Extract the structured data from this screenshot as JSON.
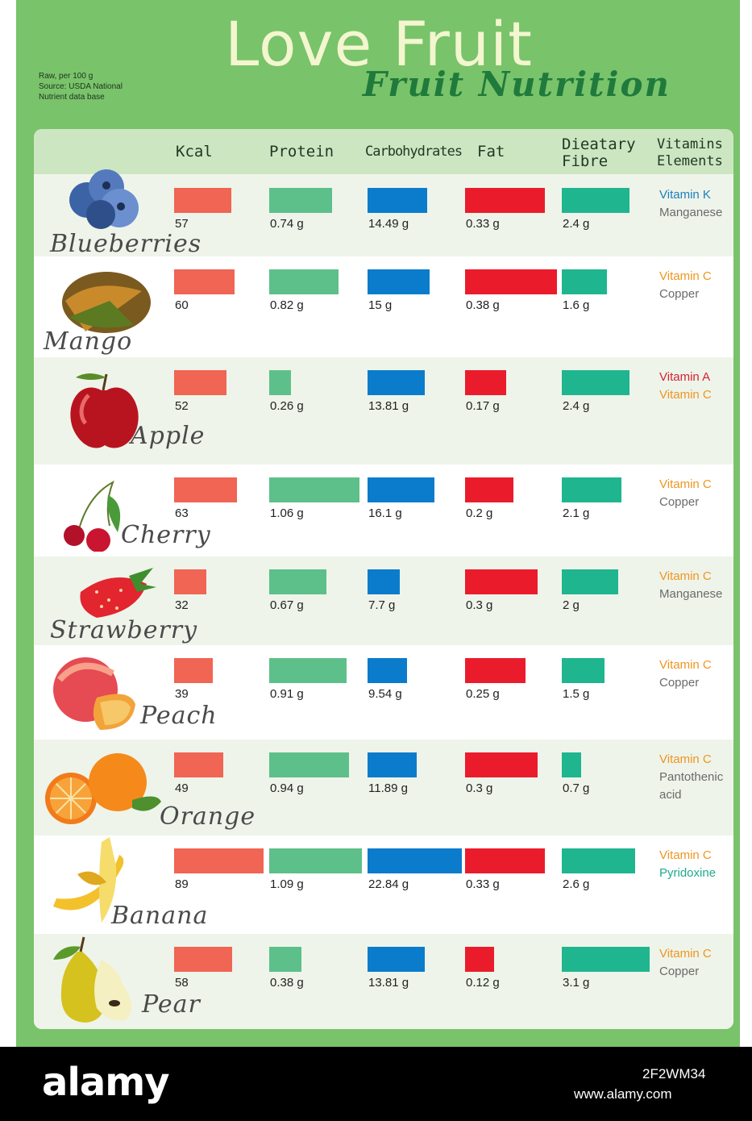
{
  "title": "Love Fruit",
  "subtitle": "Fruit Nutrition",
  "note": [
    "Raw, per 100 g",
    "Source: USDA National",
    "Nutrient data base"
  ],
  "footer": {
    "brand": "alamy",
    "image_id": "2F2WM34",
    "site": "www.alamy.com"
  },
  "colors": {
    "kcal": "#f06553",
    "protein": "#5dc08a",
    "carbs": "#0b7ccc",
    "fat": "#ea1c2c",
    "fibre": "#1fb58f"
  },
  "chart_data": {
    "type": "bar",
    "headers": [
      "Kcal",
      "Protein",
      "Carbohydrates",
      "Fat",
      "Dieatary Fibre",
      "Vitamins Elements"
    ],
    "rows": [
      {
        "fruit": "Blueberries",
        "icon": "blueberries-icon",
        "kcal": 57,
        "protein": 0.74,
        "carbs": 14.49,
        "fat": 0.33,
        "fibre": 2.4,
        "labels": {
          "kcal": "57",
          "protein": "0.74 g",
          "carbs": "14.49 g",
          "fat": "0.33 g",
          "fibre": "2.4 g"
        },
        "vitamins": [
          {
            "text": "Vitamin K",
            "color": "#1a7fbd"
          },
          {
            "text": "Manganese",
            "color": "#6b6b6b"
          }
        ]
      },
      {
        "fruit": "Mango",
        "icon": "mango-icon",
        "kcal": 60,
        "protein": 0.82,
        "carbs": 15,
        "fat": 0.38,
        "fibre": 1.6,
        "labels": {
          "kcal": "60",
          "protein": "0.82 g",
          "carbs": "15 g",
          "fat": "0.38 g",
          "fibre": "1.6 g"
        },
        "vitamins": [
          {
            "text": "Vitamin C",
            "color": "#f0951f"
          },
          {
            "text": "Copper",
            "color": "#6b6b6b"
          }
        ]
      },
      {
        "fruit": "Apple",
        "icon": "apple-icon",
        "kcal": 52,
        "protein": 0.26,
        "carbs": 13.81,
        "fat": 0.17,
        "fibre": 2.4,
        "labels": {
          "kcal": "52",
          "protein": "0.26 g",
          "carbs": "13.81 g",
          "fat": "0.17 g",
          "fibre": "2.4 g"
        },
        "vitamins": [
          {
            "text": "Vitamin A",
            "color": "#d52230"
          },
          {
            "text": "Vitamin C",
            "color": "#f0951f"
          }
        ]
      },
      {
        "fruit": "Cherry",
        "icon": "cherry-icon",
        "kcal": 63,
        "protein": 1.06,
        "carbs": 16.1,
        "fat": 0.2,
        "fibre": 2.1,
        "labels": {
          "kcal": "63",
          "protein": "1.06 g",
          "carbs": "16.1 g",
          "fat": "0.2 g",
          "fibre": "2.1 g"
        },
        "vitamins": [
          {
            "text": "Vitamin C",
            "color": "#f0951f"
          },
          {
            "text": "Copper",
            "color": "#6b6b6b"
          }
        ]
      },
      {
        "fruit": "Strawberry",
        "icon": "strawberry-icon",
        "kcal": 32,
        "protein": 0.67,
        "carbs": 7.7,
        "fat": 0.3,
        "fibre": 2,
        "labels": {
          "kcal": "32",
          "protein": "0.67 g",
          "carbs": "7.7 g",
          "fat": "0.3 g",
          "fibre": "2 g"
        },
        "vitamins": [
          {
            "text": "Vitamin C",
            "color": "#f0951f"
          },
          {
            "text": "Manganese",
            "color": "#6b6b6b"
          }
        ]
      },
      {
        "fruit": "Peach",
        "icon": "peach-icon",
        "kcal": 39,
        "protein": 0.91,
        "carbs": 9.54,
        "fat": 0.25,
        "fibre": 1.5,
        "labels": {
          "kcal": "39",
          "protein": "0.91 g",
          "carbs": "9.54 g",
          "fat": "0.25 g",
          "fibre": "1.5 g"
        },
        "vitamins": [
          {
            "text": "Vitamin C",
            "color": "#f0951f"
          },
          {
            "text": "Copper",
            "color": "#6b6b6b"
          }
        ]
      },
      {
        "fruit": "Orange",
        "icon": "orange-icon",
        "kcal": 49,
        "protein": 0.94,
        "carbs": 11.89,
        "fat": 0.3,
        "fibre": 0.7,
        "labels": {
          "kcal": "49",
          "protein": "0.94 g",
          "carbs": "11.89 g",
          "fat": "0.3 g",
          "fibre": "0.7 g"
        },
        "vitamins": [
          {
            "text": "Vitamin C",
            "color": "#f0951f"
          },
          {
            "text": "Pantothenic",
            "color": "#6b6b6b"
          },
          {
            "text": "acid",
            "color": "#6b6b6b"
          }
        ]
      },
      {
        "fruit": "Banana",
        "icon": "banana-icon",
        "kcal": 89,
        "protein": 1.09,
        "carbs": 22.84,
        "fat": 0.33,
        "fibre": 2.6,
        "labels": {
          "kcal": "89",
          "protein": "1.09 g",
          "carbs": "22.84 g",
          "fat": "0.33 g",
          "fibre": "2.6 g"
        },
        "vitamins": [
          {
            "text": "Vitamin C",
            "color": "#f0951f"
          },
          {
            "text": "Pyridoxine",
            "color": "#1faa8e"
          }
        ]
      },
      {
        "fruit": "Pear",
        "icon": "pear-icon",
        "kcal": 58,
        "protein": 0.38,
        "carbs": 13.81,
        "fat": 0.12,
        "fibre": 3.1,
        "labels": {
          "kcal": "58",
          "protein": "0.38 g",
          "carbs": "13.81 g",
          "fat": "0.12 g",
          "fibre": "3.1 g"
        },
        "vitamins": [
          {
            "text": "Vitamin C",
            "color": "#f0951f"
          },
          {
            "text": "Copper",
            "color": "#6b6b6b"
          }
        ]
      }
    ]
  }
}
